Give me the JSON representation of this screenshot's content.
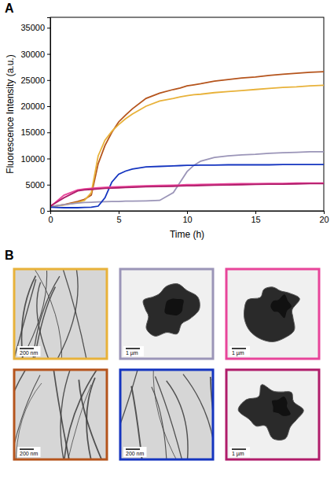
{
  "chart_data": {
    "type": "line",
    "xlabel": "Time (h)",
    "ylabel": "Fluorescence Intensity (a.u.)",
    "x": [
      0,
      1,
      2,
      2.5,
      3,
      3.5,
      4,
      4.5,
      5,
      5.5,
      6,
      7,
      8,
      9,
      9.5,
      10,
      10.5,
      11,
      12,
      13,
      14,
      15,
      16,
      17,
      18,
      19,
      20
    ],
    "series": [
      {
        "color": "#b5541c",
        "values": [
          800,
          1200,
          1800,
          2200,
          3000,
          9000,
          12500,
          15000,
          17000,
          18300,
          19500,
          21500,
          22500,
          23200,
          23500,
          23900,
          24100,
          24300,
          24800,
          25100,
          25400,
          25600,
          25900,
          26100,
          26300,
          26500,
          26600
        ]
      },
      {
        "color": "#e8b23a",
        "values": [
          800,
          1100,
          1600,
          2000,
          3500,
          10500,
          13500,
          15200,
          16500,
          17600,
          18500,
          20000,
          21000,
          21500,
          21800,
          22000,
          22200,
          22300,
          22600,
          22800,
          23000,
          23200,
          23400,
          23600,
          23700,
          23900,
          24000
        ]
      },
      {
        "color": "#9b95b8",
        "values": [
          800,
          1200,
          1500,
          1600,
          1650,
          1700,
          1750,
          1800,
          1800,
          1850,
          1850,
          1900,
          2000,
          3500,
          5500,
          7500,
          8700,
          9500,
          10200,
          10500,
          10700,
          10800,
          11000,
          11100,
          11200,
          11300,
          11300
        ]
      },
      {
        "color": "#1535c0",
        "values": [
          700,
          600,
          600,
          650,
          700,
          900,
          2500,
          5500,
          7000,
          7600,
          8000,
          8400,
          8500,
          8600,
          8650,
          8700,
          8700,
          8750,
          8750,
          8800,
          8800,
          8800,
          8800,
          8850,
          8850,
          8850,
          8850
        ]
      },
      {
        "color": "#e8459a",
        "values": [
          800,
          3000,
          4000,
          4200,
          4300,
          4400,
          4500,
          4550,
          4600,
          4650,
          4700,
          4800,
          4850,
          4900,
          4950,
          5000,
          5000,
          5050,
          5100,
          5150,
          5200,
          5200,
          5250,
          5250,
          5300,
          5300,
          5300
        ]
      },
      {
        "color": "#b01c6a",
        "values": [
          900,
          2500,
          3800,
          4000,
          4100,
          4200,
          4300,
          4350,
          4400,
          4450,
          4500,
          4600,
          4650,
          4700,
          4750,
          4800,
          4800,
          4850,
          4900,
          4950,
          5000,
          5050,
          5100,
          5100,
          5150,
          5200,
          5200
        ]
      }
    ],
    "xlim": [
      0,
      20
    ],
    "xticks": [
      0,
      5,
      10,
      15,
      20
    ],
    "ylim": [
      0,
      37000
    ],
    "yticks": [
      0,
      5000,
      10000,
      15000,
      20000,
      25000,
      30000,
      35000
    ],
    "grid": false
  },
  "figure": {
    "panel_labels": [
      "A",
      "B"
    ],
    "images": [
      {
        "color": "#e8b23a",
        "scale_bar": "200 nm"
      },
      {
        "color": "#9b95b8",
        "scale_bar": "1 µm"
      },
      {
        "color": "#e8459a",
        "scale_bar": "1 µm"
      },
      {
        "color": "#b5541c",
        "scale_bar": "200 nm"
      },
      {
        "color": "#1535c0",
        "scale_bar": "200 nm"
      },
      {
        "color": "#b01c6a",
        "scale_bar": "1 µm"
      }
    ]
  }
}
